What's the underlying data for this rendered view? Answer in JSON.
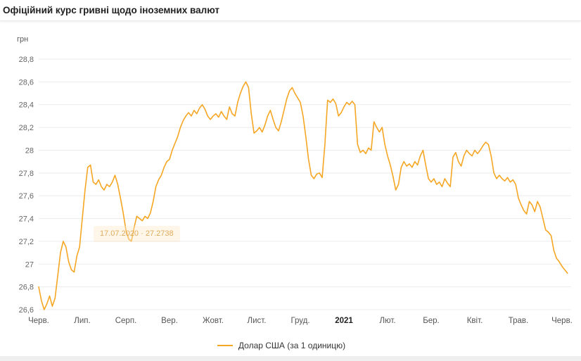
{
  "header": {
    "title": "Офіційний курс гривні щодо іноземних валют"
  },
  "tooltip": {
    "text": "17.07.2020 · 27.2738"
  },
  "legend": {
    "label": "Долар США (за 1 одиницю)"
  },
  "colors": {
    "line": "#F5A623",
    "grid": "#ebebeb",
    "tick_text": "#666666"
  },
  "chart_data": {
    "type": "line",
    "title": "Офіційний курс гривні щодо іноземних валют",
    "xlabel": "",
    "ylabel": "грн",
    "ylim": [
      26.6,
      28.8
    ],
    "grid": true,
    "legend_position": "bottom",
    "line_color": "#F5A623",
    "points_per_month": 16,
    "yticks": [
      {
        "value": 28.8,
        "label": "28,8"
      },
      {
        "value": 28.6,
        "label": "28,6"
      },
      {
        "value": 28.4,
        "label": "28,4"
      },
      {
        "value": 28.2,
        "label": "28,2"
      },
      {
        "value": 28.0,
        "label": "28"
      },
      {
        "value": 27.8,
        "label": "27,8"
      },
      {
        "value": 27.6,
        "label": "27,6"
      },
      {
        "value": 27.4,
        "label": "27,4"
      },
      {
        "value": 27.2,
        "label": "27,2"
      },
      {
        "value": 27.0,
        "label": "27"
      },
      {
        "value": 26.8,
        "label": "26,8"
      },
      {
        "value": 26.6,
        "label": "26,6"
      }
    ],
    "xticks": [
      {
        "label": "Черв.",
        "bold": false
      },
      {
        "label": "Лип.",
        "bold": false
      },
      {
        "label": "Серп.",
        "bold": false
      },
      {
        "label": "Вер.",
        "bold": false
      },
      {
        "label": "Жовт.",
        "bold": false
      },
      {
        "label": "Лист.",
        "bold": false
      },
      {
        "label": "Груд.",
        "bold": false
      },
      {
        "label": "2021",
        "bold": true
      },
      {
        "label": "Лют.",
        "bold": false
      },
      {
        "label": "Бер.",
        "bold": false
      },
      {
        "label": "Квіт.",
        "bold": false
      },
      {
        "label": "Трав.",
        "bold": false
      },
      {
        "label": "Черв.",
        "bold": false
      }
    ],
    "series": [
      {
        "name": "Долар США (за 1 одиницю)",
        "values": [
          26.8,
          26.68,
          26.6,
          26.65,
          26.72,
          26.63,
          26.7,
          26.9,
          27.1,
          27.2,
          27.15,
          27.02,
          26.95,
          26.93,
          27.07,
          27.15,
          27.4,
          27.65,
          27.85,
          27.87,
          27.72,
          27.7,
          27.74,
          27.68,
          27.65,
          27.7,
          27.68,
          27.72,
          27.78,
          27.7,
          27.58,
          27.45,
          27.3,
          27.22,
          27.2,
          27.32,
          27.42,
          27.4,
          27.38,
          27.42,
          27.4,
          27.45,
          27.55,
          27.68,
          27.74,
          27.78,
          27.85,
          27.9,
          27.92,
          28.0,
          28.06,
          28.12,
          28.2,
          28.26,
          28.3,
          28.33,
          28.3,
          28.35,
          28.32,
          28.37,
          28.4,
          28.36,
          28.3,
          28.27,
          28.3,
          28.32,
          28.29,
          28.34,
          28.3,
          28.27,
          28.38,
          28.32,
          28.3,
          28.42,
          28.5,
          28.56,
          28.6,
          28.55,
          28.32,
          28.15,
          28.17,
          28.2,
          28.16,
          28.22,
          28.3,
          28.35,
          28.27,
          28.2,
          28.17,
          28.25,
          28.35,
          28.45,
          28.52,
          28.55,
          28.5,
          28.46,
          28.42,
          28.3,
          28.12,
          27.92,
          27.78,
          27.75,
          27.79,
          27.8,
          27.76,
          28.05,
          28.44,
          28.42,
          28.45,
          28.41,
          28.3,
          28.33,
          28.38,
          28.42,
          28.4,
          28.43,
          28.4,
          28.05,
          27.98,
          28.0,
          27.97,
          28.02,
          28.0,
          28.25,
          28.2,
          28.16,
          28.2,
          28.05,
          27.95,
          27.87,
          27.77,
          27.65,
          27.7,
          27.85,
          27.9,
          27.86,
          27.88,
          27.85,
          27.9,
          27.87,
          27.95,
          28.0,
          27.87,
          27.75,
          27.72,
          27.75,
          27.7,
          27.72,
          27.68,
          27.75,
          27.71,
          27.68,
          27.94,
          27.98,
          27.9,
          27.86,
          27.95,
          28.0,
          27.97,
          27.95,
          28.0,
          27.97,
          28.0,
          28.04,
          28.07,
          28.05,
          27.95,
          27.8,
          27.75,
          27.78,
          27.75,
          27.73,
          27.76,
          27.72,
          27.74,
          27.7,
          27.58,
          27.52,
          27.47,
          27.44,
          27.55,
          27.52,
          27.46,
          27.55,
          27.5,
          27.4,
          27.3,
          27.28,
          27.25,
          27.12,
          27.05,
          27.02,
          26.98,
          26.95,
          26.92
        ]
      }
    ]
  }
}
